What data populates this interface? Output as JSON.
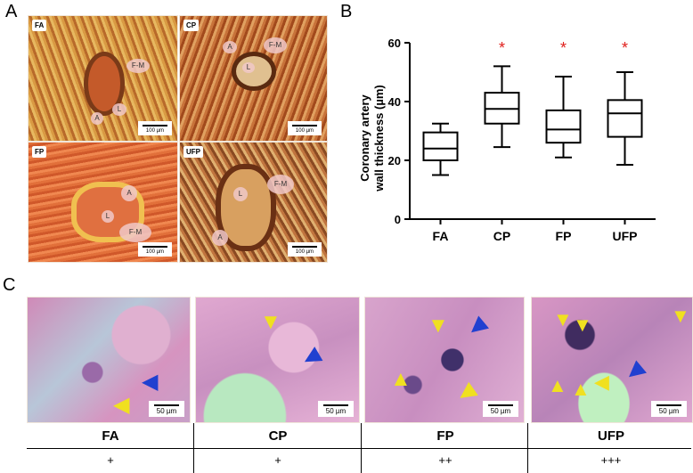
{
  "panel_letters": {
    "a": "A",
    "b": "B",
    "c": "C"
  },
  "panel_a": {
    "images": [
      {
        "label": "FA",
        "scale": "100 µm",
        "tags": [
          "F-M",
          "L",
          "A"
        ]
      },
      {
        "label": "CP",
        "scale": "100 µm",
        "tags": [
          "A",
          "F-M",
          "L"
        ]
      },
      {
        "label": "FP",
        "scale": "100 µm",
        "tags": [
          "A",
          "L",
          "F-M"
        ]
      },
      {
        "label": "UFP",
        "scale": "100 µm",
        "tags": [
          "F-M",
          "L",
          "A"
        ]
      }
    ]
  },
  "panel_c": {
    "images": [
      {
        "scale": "50 µm"
      },
      {
        "scale": "50 µm"
      },
      {
        "scale": "50 µm"
      },
      {
        "scale": "50 µm"
      }
    ],
    "table": {
      "groups": [
        "FA",
        "CP",
        "FP",
        "UFP"
      ],
      "scores": [
        "+",
        "+",
        "++",
        "+++"
      ]
    }
  },
  "chart_data": {
    "type": "box",
    "ylabel_line1": "Coronary artery",
    "ylabel_line2": "wall thickness (µm)",
    "ylim": [
      0,
      60
    ],
    "yticks": [
      0,
      20,
      40,
      60
    ],
    "categories": [
      "FA",
      "CP",
      "FP",
      "UFP"
    ],
    "boxes": [
      {
        "min": 15,
        "q1": 20,
        "median": 24,
        "q3": 29.5,
        "max": 32.5
      },
      {
        "min": 24.5,
        "q1": 32.5,
        "median": 37.5,
        "q3": 43,
        "max": 52
      },
      {
        "min": 21,
        "q1": 26,
        "median": 30.5,
        "q3": 37,
        "max": 48.5
      },
      {
        "min": 18.5,
        "q1": 28,
        "median": 36,
        "q3": 40.5,
        "max": 50
      }
    ],
    "significance": [
      "",
      "*",
      "*",
      "*"
    ],
    "significance_color": "#e0201c"
  }
}
